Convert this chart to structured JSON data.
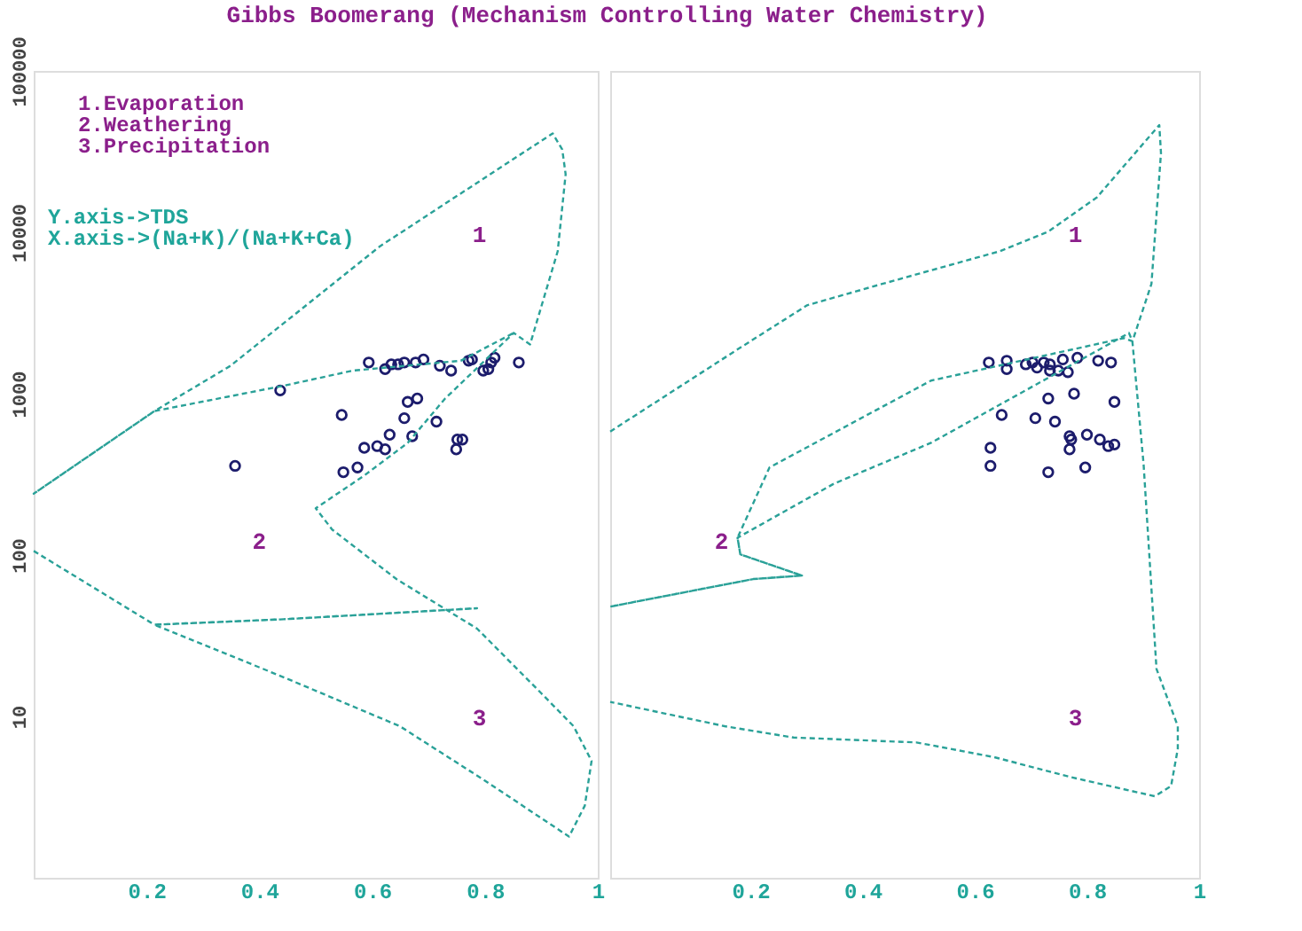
{
  "chart_data": [
    {
      "type": "scatter",
      "title": "Gibbs Boomerang (Mechanism Controlling Water Chemistry)",
      "log": "y",
      "grid": false,
      "xlim": [
        0,
        1
      ],
      "xticks": [
        0.2,
        0.4,
        0.6,
        0.8,
        {
          "value": 1,
          "label": "1"
        }
      ],
      "ylim": [
        1,
        100000
      ],
      "yticks": [
        10,
        100,
        1000,
        10000,
        100000
      ],
      "annotations": [
        "1.Evaporation",
        "2.Weathering",
        "3.Precipitation",
        "Y.axis->TDS",
        "X.axis->(Na+K)/(Na+K+Ca)",
        "1",
        "2",
        "3"
      ],
      "series": [
        {
          "marker": "circle",
          "color": "#1c1c6c",
          "x": [
            0.594,
            0.623,
            0.634,
            0.646,
            0.657,
            0.677,
            0.691,
            0.72,
            0.74,
            0.771,
            0.777,
            0.797,
            0.806,
            0.811,
            0.817,
            0.86,
            0.546,
            0.663,
            0.68,
            0.657,
            0.714,
            0.631,
            0.671,
            0.586,
            0.609,
            0.623,
            0.749,
            0.751,
            0.76,
            0.574,
            0.549,
            0.357,
            0.437
          ],
          "values": [
            1560,
            1420,
            1520,
            1520,
            1560,
            1560,
            1630,
            1490,
            1390,
            1600,
            1630,
            1390,
            1420,
            1560,
            1670,
            1560,
            738,
            889,
            933,
            705,
            671,
            557,
            545,
            462,
            473,
            452,
            452,
            520,
            520,
            349,
            326,
            357,
            1047
          ]
        },
        {
          "type": "line",
          "line_style": "dashed",
          "color": "#2aa198",
          "x": [
            0,
            0.214,
            0.443,
            0.786,
            0.443,
            0.214,
            0.443,
            0.649,
            0.8,
            0.949,
            0.977,
            0.989,
            0.957,
            0.9,
            0.786,
            0.643,
            0.529,
            0.5,
            0.586,
            0.663,
            0.729,
            0.851,
            0.88,
            0.929,
            0.943,
            0.937,
            0.92,
            0.614,
            0.349,
            0.214,
            0,
            0.214,
            0.443,
            0.566,
            0.757,
            0.851
          ],
          "values": [
            106,
            37,
            40,
            46.8,
            40,
            37,
            17.5,
            8.7,
            4.0,
            1.8,
            2.8,
            5.3,
            8.7,
            13.9,
            35,
            71,
            144,
            195,
            311,
            495,
            930,
            2380,
            2020,
            7640,
            22900,
            32600,
            41000,
            8200,
            1490,
            780,
            240,
            780,
            1120,
            1390,
            1600,
            2380
          ]
        }
      ]
    },
    {
      "type": "scatter",
      "log": "y",
      "grid": false,
      "tick_labels": "x",
      "xlim": [
        -0.05,
        1
      ],
      "xticks": [
        0.2,
        0.4,
        0.6,
        0.8,
        {
          "value": 1,
          "label": "1"
        }
      ],
      "ylim": [
        1,
        100000
      ],
      "yticks": [
        10,
        100,
        1000,
        10000,
        100000
      ],
      "annotations": [
        "1",
        "2",
        "3"
      ],
      "series": [
        {
          "marker": "circle",
          "color": "#1c1c6c",
          "x": [
            0.625,
            0.657,
            0.657,
            0.691,
            0.703,
            0.711,
            0.723,
            0.734,
            0.734,
            0.749,
            0.757,
            0.766,
            0.783,
            0.82,
            0.843,
            0.648,
            0.731,
            0.777,
            0.849,
            0.708,
            0.743,
            0.769,
            0.772,
            0.769,
            0.8,
            0.823,
            0.838,
            0.849,
            0.628,
            0.628,
            0.731,
            0.797
          ],
          "values": [
            1560,
            1600,
            1420,
            1520,
            1560,
            1450,
            1560,
            1520,
            1390,
            1390,
            1630,
            1360,
            1670,
            1600,
            1560,
            738,
            933,
            1000,
            889,
            705,
            671,
            545,
            520,
            452,
            557,
            520,
            473,
            484,
            462,
            357,
            326,
            349
          ]
        },
        {
          "type": "line",
          "line_style": "dashed",
          "color": "#2aa198",
          "x": [
            -0.05,
            0.177,
            0.301,
            0.435,
            0.645,
            0.731,
            0.818,
            0.929,
            0.932,
            0.915,
            0.881,
            0.866,
            0.522,
            0.234,
            0.177,
            0.182,
            0.292,
            0.205,
            -0.05,
            0.205,
            0.292,
            0.182,
            0.177,
            0.349,
            0.522,
            0.875,
            0.881,
            0.901,
            0.924,
            0.962,
            0.962,
            0.95,
            0.921,
            0.772,
            0.634,
            0.496,
            0.277,
            0.154,
            -0.05
          ],
          "values": [
            583,
            1880,
            3530,
            4790,
            7640,
            10100,
            16500,
            46200,
            31000,
            4790,
            2110,
            2210,
            1205,
            349,
            128,
            101,
            74.6,
            71,
            47.9,
            71,
            74.6,
            101,
            128,
            277,
            496,
            2376,
            2110,
            366,
            19.7,
            8.7,
            6.3,
            3.7,
            3.2,
            4.2,
            5.6,
            6.9,
            7.4,
            8.7,
            12.3
          ]
        }
      ]
    }
  ]
}
